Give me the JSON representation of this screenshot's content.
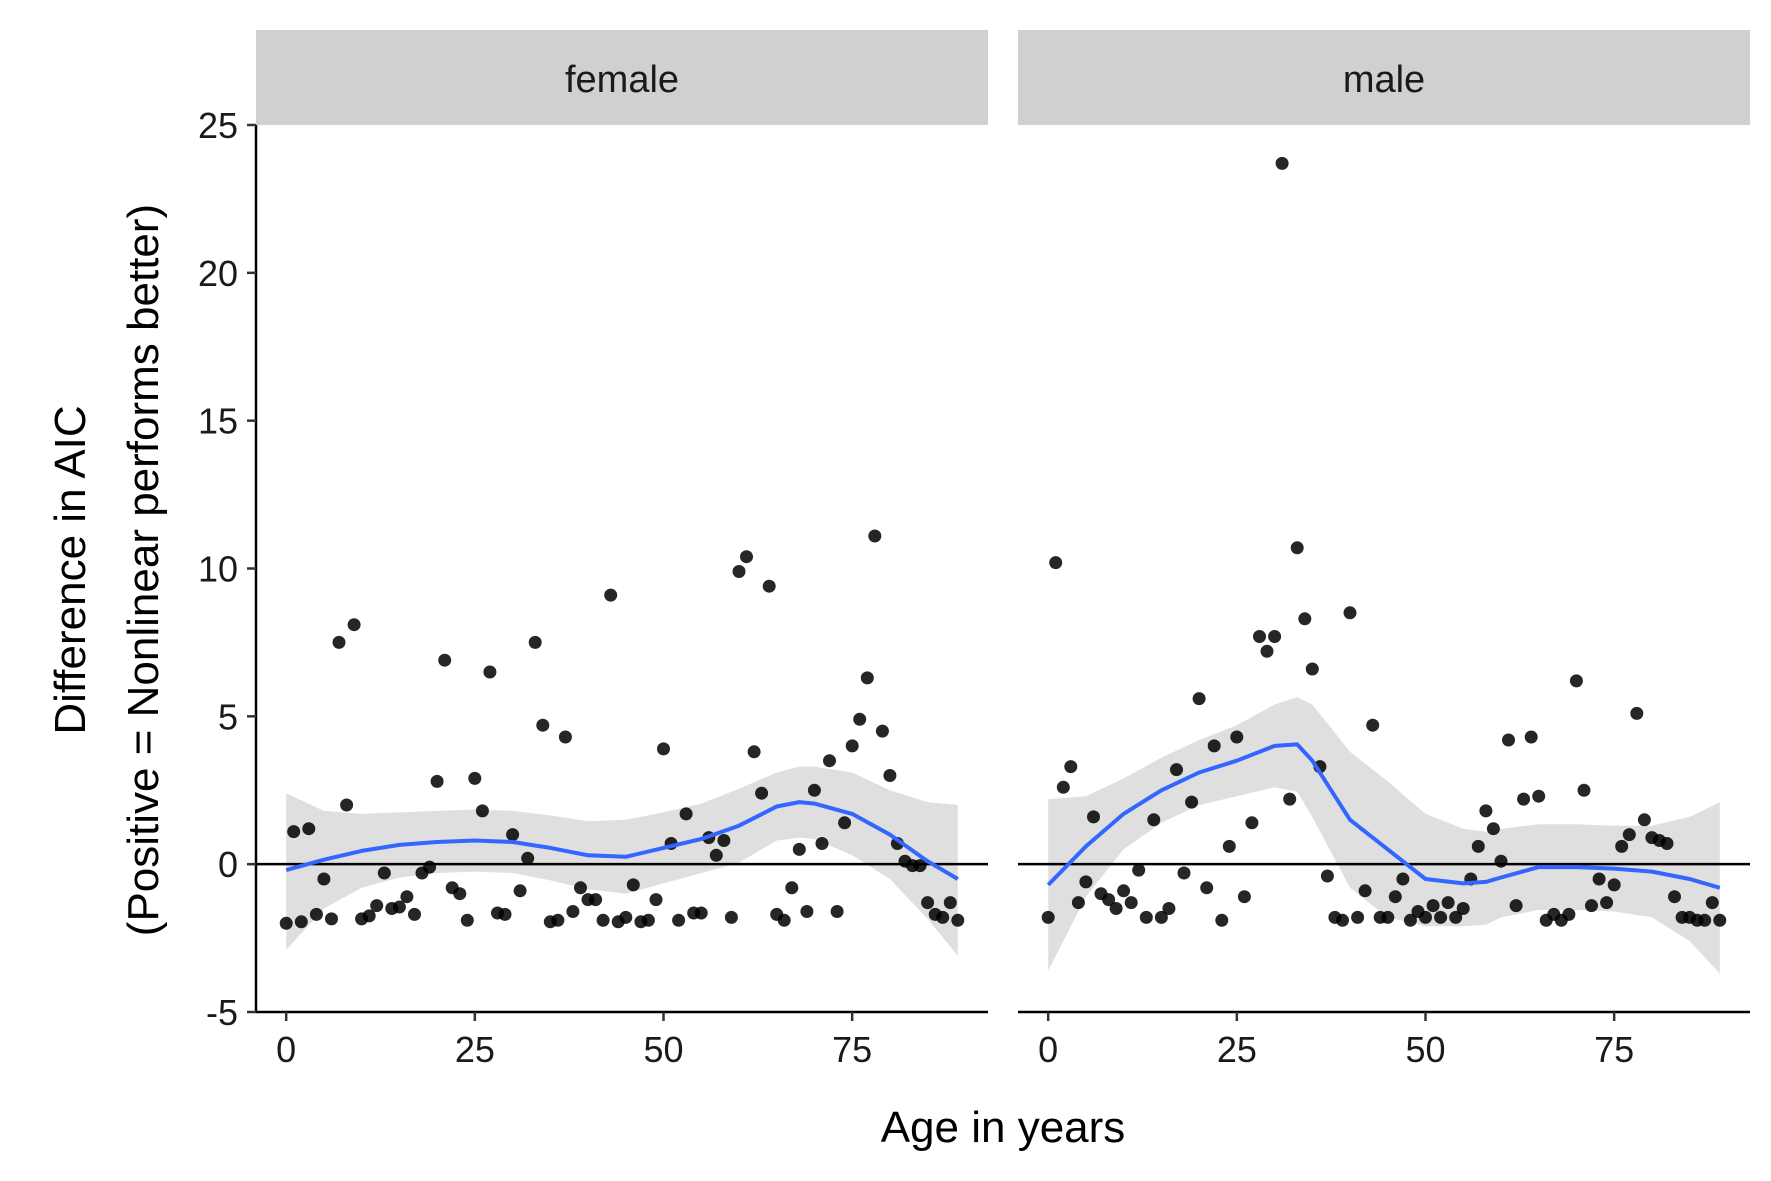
{
  "chart_data": {
    "type": "scatter",
    "xlabel": "Age in years",
    "ylabel_line1": "Difference in AIC",
    "ylabel_line2": "(Positive = Nonlinear performs better)",
    "xlim": [
      -4,
      93
    ],
    "ylim": [
      -5,
      25
    ],
    "x_ticks": [
      0,
      25,
      50,
      75
    ],
    "x_tick_labels": [
      "0",
      "25",
      "50",
      "75"
    ],
    "y_ticks": [
      -5,
      0,
      5,
      10,
      15,
      20,
      25
    ],
    "y_tick_labels": [
      "-5",
      "0",
      "5",
      "10",
      "15",
      "20",
      "25"
    ],
    "reference_line_y": 0,
    "colors": {
      "points": "#000000",
      "smooth": "#3366FF",
      "ribbon": "#d9d9d9",
      "strip": "#d0d0d0"
    },
    "panels": [
      {
        "name": "female",
        "points": [
          [
            0,
            -2
          ],
          [
            1,
            1.1
          ],
          [
            2,
            -1.95
          ],
          [
            3,
            1.2
          ],
          [
            4,
            -1.7
          ],
          [
            5,
            -0.5
          ],
          [
            6,
            -1.85
          ],
          [
            7,
            7.5
          ],
          [
            8,
            2
          ],
          [
            9,
            8.1
          ],
          [
            10,
            -1.85
          ],
          [
            11,
            -1.75
          ],
          [
            12,
            -1.4
          ],
          [
            13,
            -0.3
          ],
          [
            14,
            -1.5
          ],
          [
            15,
            -1.45
          ],
          [
            16,
            -1.1
          ],
          [
            17,
            -1.7
          ],
          [
            18,
            -0.3
          ],
          [
            19,
            -0.1
          ],
          [
            20,
            2.8
          ],
          [
            21,
            6.9
          ],
          [
            22,
            -0.8
          ],
          [
            23,
            -1
          ],
          [
            24,
            -1.9
          ],
          [
            25,
            2.9
          ],
          [
            26,
            1.8
          ],
          [
            27,
            6.5
          ],
          [
            28,
            -1.65
          ],
          [
            29,
            -1.7
          ],
          [
            30,
            1
          ],
          [
            31,
            -0.9
          ],
          [
            32,
            0.2
          ],
          [
            33,
            7.5
          ],
          [
            34,
            4.7
          ],
          [
            35,
            -1.95
          ],
          [
            36,
            -1.9
          ],
          [
            37,
            4.3
          ],
          [
            38,
            -1.6
          ],
          [
            39,
            -0.8
          ],
          [
            40,
            -1.2
          ],
          [
            41,
            -1.2
          ],
          [
            42,
            -1.9
          ],
          [
            43,
            9.1
          ],
          [
            44,
            -1.95
          ],
          [
            45,
            -1.8
          ],
          [
            46,
            -0.7
          ],
          [
            47,
            -1.95
          ],
          [
            48,
            -1.9
          ],
          [
            49,
            -1.2
          ],
          [
            50,
            3.9
          ],
          [
            51,
            0.7
          ],
          [
            52,
            -1.9
          ],
          [
            53,
            1.7
          ],
          [
            54,
            -1.65
          ],
          [
            55,
            -1.65
          ],
          [
            56,
            0.9
          ],
          [
            57,
            0.3
          ],
          [
            58,
            0.8
          ],
          [
            59,
            -1.8
          ],
          [
            60,
            9.9
          ],
          [
            61,
            10.4
          ],
          [
            62,
            3.8
          ],
          [
            63,
            2.4
          ],
          [
            64,
            9.4
          ],
          [
            65,
            -1.7
          ],
          [
            66,
            -1.9
          ],
          [
            67,
            -0.8
          ],
          [
            68,
            0.5
          ],
          [
            69,
            -1.6
          ],
          [
            70,
            2.5
          ],
          [
            71,
            0.7
          ],
          [
            72,
            3.5
          ],
          [
            73,
            -1.6
          ],
          [
            74,
            1.4
          ],
          [
            75,
            4
          ],
          [
            76,
            4.9
          ],
          [
            77,
            6.3
          ],
          [
            78,
            11.1
          ],
          [
            79,
            4.5
          ],
          [
            80,
            3
          ],
          [
            81,
            0.7
          ],
          [
            82,
            0.1
          ],
          [
            83,
            -0.05
          ],
          [
            84,
            -0.05
          ],
          [
            85,
            -1.3
          ],
          [
            86,
            -1.7
          ],
          [
            87,
            -1.8
          ],
          [
            88,
            -1.3
          ],
          [
            89,
            -1.9
          ]
        ],
        "smooth_x": [
          0,
          5,
          10,
          15,
          20,
          25,
          30,
          35,
          40,
          45,
          50,
          55,
          60,
          65,
          68,
          70,
          75,
          80,
          85,
          89
        ],
        "smooth_y": [
          -0.2,
          0.15,
          0.45,
          0.65,
          0.75,
          0.8,
          0.75,
          0.55,
          0.3,
          0.25,
          0.55,
          0.85,
          1.3,
          1.95,
          2.1,
          2.05,
          1.7,
          1,
          0.1,
          -0.5
        ],
        "ribbon_upper": [
          2.4,
          1.8,
          1.7,
          1.75,
          1.8,
          1.85,
          1.8,
          1.65,
          1.45,
          1.5,
          1.75,
          2.05,
          2.55,
          3.1,
          3.3,
          3.3,
          3.1,
          2.5,
          2.1,
          2
        ],
        "ribbon_lower": [
          -2.9,
          -1.5,
          -0.8,
          -0.45,
          -0.3,
          -0.25,
          -0.3,
          -0.55,
          -0.85,
          -1,
          -0.65,
          -0.3,
          0.05,
          0.8,
          0.9,
          0.85,
          0.3,
          -0.5,
          -1.85,
          -3.1
        ]
      },
      {
        "name": "male",
        "points": [
          [
            0,
            -1.8
          ],
          [
            1,
            10.2
          ],
          [
            2,
            2.6
          ],
          [
            3,
            3.3
          ],
          [
            4,
            -1.3
          ],
          [
            5,
            -0.6
          ],
          [
            6,
            1.6
          ],
          [
            7,
            -1
          ],
          [
            8,
            -1.2
          ],
          [
            9,
            -1.5
          ],
          [
            10,
            -0.9
          ],
          [
            11,
            -1.3
          ],
          [
            12,
            -0.2
          ],
          [
            13,
            -1.8
          ],
          [
            14,
            1.5
          ],
          [
            15,
            -1.8
          ],
          [
            16,
            -1.5
          ],
          [
            17,
            3.2
          ],
          [
            18,
            -0.3
          ],
          [
            19,
            2.1
          ],
          [
            20,
            5.6
          ],
          [
            21,
            -0.8
          ],
          [
            22,
            4
          ],
          [
            23,
            -1.9
          ],
          [
            24,
            0.6
          ],
          [
            25,
            4.3
          ],
          [
            26,
            -1.1
          ],
          [
            27,
            1.4
          ],
          [
            28,
            7.7
          ],
          [
            29,
            7.2
          ],
          [
            30,
            7.7
          ],
          [
            31,
            23.7
          ],
          [
            32,
            2.2
          ],
          [
            33,
            10.7
          ],
          [
            34,
            8.3
          ],
          [
            35,
            6.6
          ],
          [
            36,
            3.3
          ],
          [
            37,
            -0.4
          ],
          [
            38,
            -1.8
          ],
          [
            39,
            -1.9
          ],
          [
            40,
            8.5
          ],
          [
            41,
            -1.8
          ],
          [
            42,
            -0.9
          ],
          [
            43,
            4.7
          ],
          [
            44,
            -1.8
          ],
          [
            45,
            -1.8
          ],
          [
            46,
            -1.1
          ],
          [
            47,
            -0.5
          ],
          [
            48,
            -1.9
          ],
          [
            49,
            -1.6
          ],
          [
            50,
            -1.8
          ],
          [
            51,
            -1.4
          ],
          [
            52,
            -1.8
          ],
          [
            53,
            -1.3
          ],
          [
            54,
            -1.8
          ],
          [
            55,
            -1.5
          ],
          [
            56,
            -0.5
          ],
          [
            57,
            0.6
          ],
          [
            58,
            1.8
          ],
          [
            59,
            1.2
          ],
          [
            60,
            0.1
          ],
          [
            61,
            4.2
          ],
          [
            62,
            -1.4
          ],
          [
            63,
            2.2
          ],
          [
            64,
            4.3
          ],
          [
            65,
            2.3
          ],
          [
            66,
            -1.9
          ],
          [
            67,
            -1.7
          ],
          [
            68,
            -1.9
          ],
          [
            69,
            -1.7
          ],
          [
            70,
            6.2
          ],
          [
            71,
            2.5
          ],
          [
            72,
            -1.4
          ],
          [
            73,
            -0.5
          ],
          [
            74,
            -1.3
          ],
          [
            75,
            -0.7
          ],
          [
            76,
            0.6
          ],
          [
            77,
            1
          ],
          [
            78,
            5.1
          ],
          [
            79,
            1.5
          ],
          [
            80,
            0.9
          ],
          [
            81,
            0.8
          ],
          [
            82,
            0.7
          ],
          [
            83,
            -1.1
          ],
          [
            84,
            -1.8
          ],
          [
            85,
            -1.8
          ],
          [
            86,
            -1.9
          ],
          [
            87,
            -1.9
          ],
          [
            88,
            -1.3
          ],
          [
            89,
            -1.9
          ]
        ],
        "smooth_x": [
          0,
          5,
          10,
          15,
          20,
          25,
          30,
          33,
          35,
          40,
          45,
          50,
          55,
          58,
          60,
          65,
          70,
          75,
          80,
          85,
          89
        ],
        "smooth_y": [
          -0.7,
          0.6,
          1.7,
          2.5,
          3.1,
          3.5,
          4,
          4.05,
          3.5,
          1.5,
          0.5,
          -0.5,
          -0.65,
          -0.6,
          -0.45,
          -0.1,
          -0.1,
          -0.15,
          -0.25,
          -0.5,
          -0.8
        ],
        "ribbon_upper": [
          2.2,
          2.3,
          2.9,
          3.6,
          4.2,
          4.7,
          5.4,
          5.65,
          5.4,
          3.8,
          2.8,
          1.7,
          1.2,
          1.1,
          1.2,
          1.35,
          1.35,
          1.3,
          1.3,
          1.6,
          2.1
        ],
        "ribbon_lower": [
          -3.6,
          -1.1,
          0.5,
          1.4,
          2,
          2.3,
          2.6,
          2.45,
          1.6,
          -0.8,
          -1.8,
          -2.1,
          -2.1,
          -2.05,
          -1.8,
          -1.55,
          -1.55,
          -1.6,
          -1.8,
          -2.6,
          -3.7
        ]
      }
    ]
  }
}
